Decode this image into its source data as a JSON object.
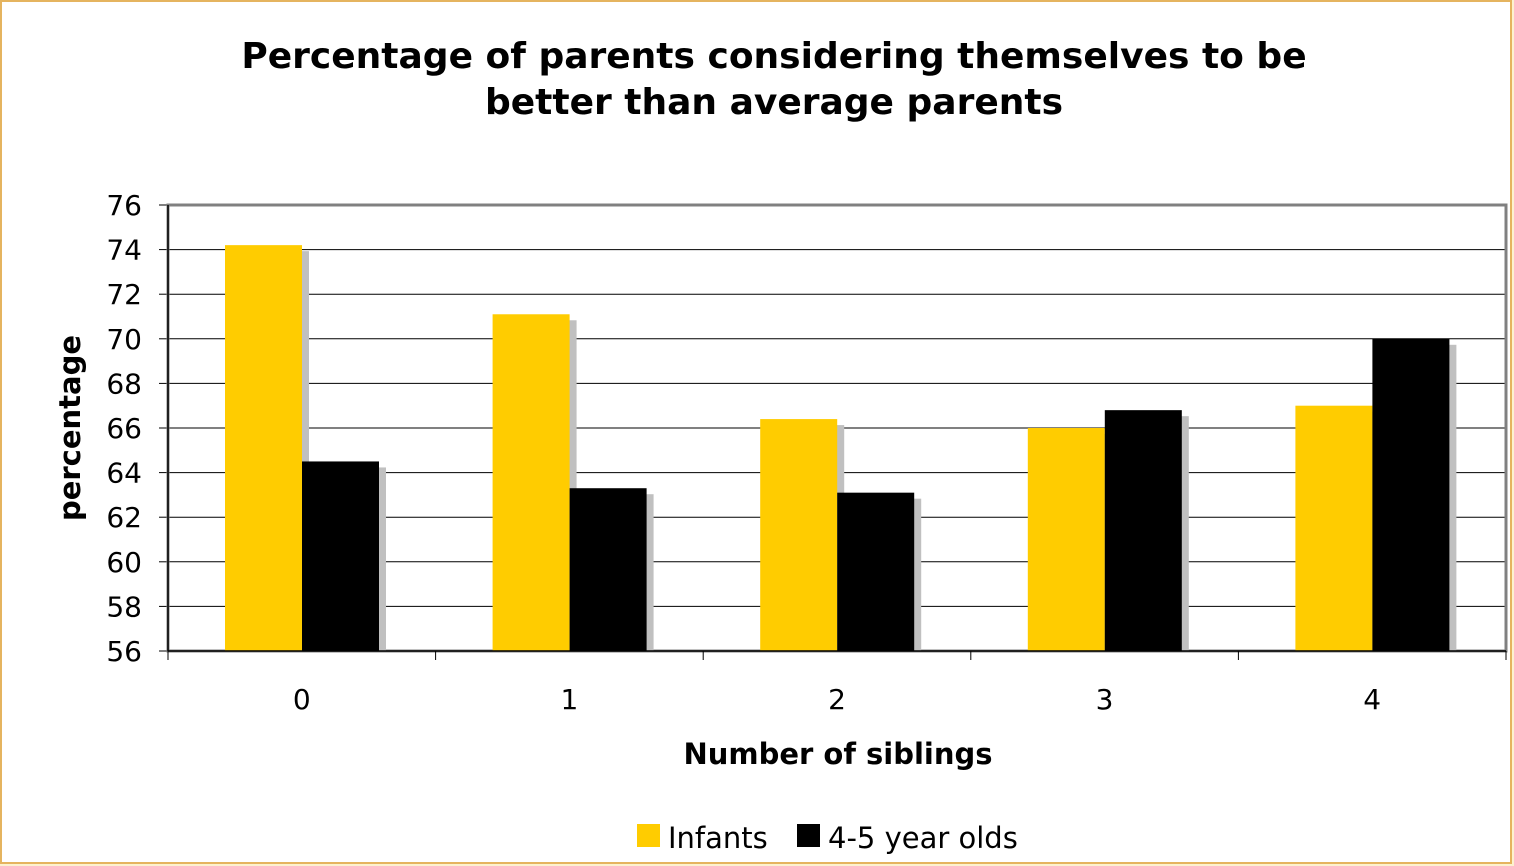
{
  "chart_data": {
    "type": "bar",
    "title_lines": [
      "Percentage of parents considering themselves to be",
      "better than average parents"
    ],
    "xlabel": "Number of siblings",
    "ylabel": "percentage",
    "categories": [
      "0",
      "1",
      "2",
      "3",
      "4"
    ],
    "ylim": [
      56,
      76
    ],
    "yticks": [
      "56",
      "58",
      "60",
      "62",
      "64",
      "66",
      "68",
      "70",
      "72",
      "74",
      "76"
    ],
    "grid": true,
    "legend_position": "bottom",
    "series": [
      {
        "name": "Infants",
        "color": "#ffcc00",
        "values": [
          74.2,
          71.1,
          66.4,
          66.0,
          67.0
        ]
      },
      {
        "name": "4-5 year olds",
        "color": "#000000",
        "values": [
          64.5,
          63.3,
          63.1,
          66.8,
          70.0
        ]
      }
    ]
  }
}
